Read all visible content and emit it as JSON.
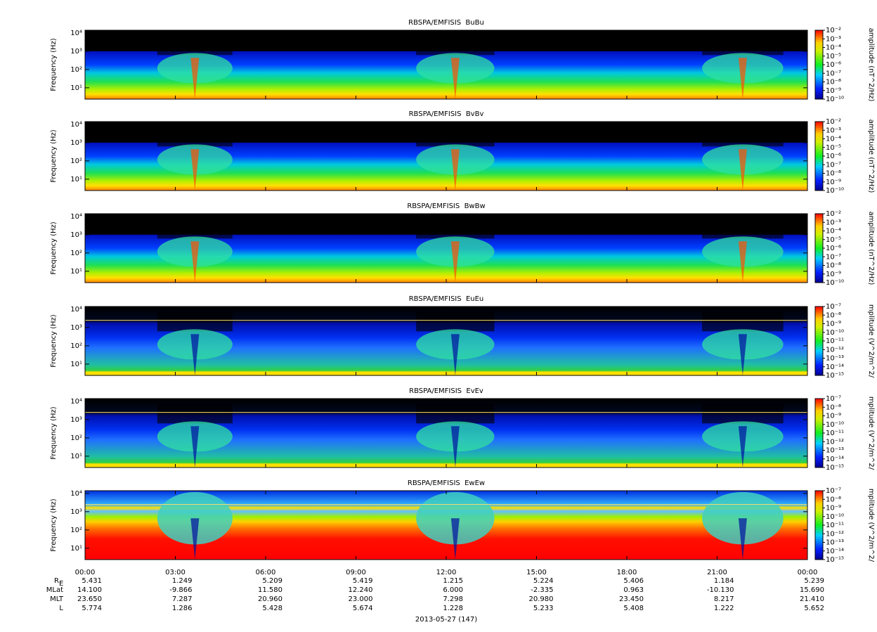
{
  "chart_data": [
    {
      "type": "spectrogram",
      "title": "RBSPA/EMFISIS  BuBu",
      "y_label": "Frequency (Hz)",
      "log_y": true,
      "ylim": [
        2.4,
        14000
      ],
      "yticks": [
        {
          "value": 10,
          "label": "10¹"
        },
        {
          "value": 100,
          "label": "10²"
        },
        {
          "value": 1000,
          "label": "10³"
        },
        {
          "value": 10000,
          "label": "10⁴"
        }
      ],
      "colorbar": {
        "label": "amplitude (nT^2/Hz)",
        "log": true,
        "zlim": [
          1e-10,
          0.01
        ],
        "zticks": [
          {
            "value": 0.01,
            "label": "10⁻²"
          },
          {
            "value": 0.001,
            "label": "10⁻³"
          },
          {
            "value": 0.0001,
            "label": "10⁻⁴"
          },
          {
            "value": 1e-05,
            "label": "10⁻⁵"
          },
          {
            "value": 1e-06,
            "label": "10⁻⁶"
          },
          {
            "value": 1e-07,
            "label": "10⁻⁷"
          },
          {
            "value": 1e-08,
            "label": "10⁻⁸"
          },
          {
            "value": 1e-09,
            "label": "10⁻⁹"
          },
          {
            "value": 1e-10,
            "label": "10⁻¹⁰"
          }
        ]
      }
    },
    {
      "type": "spectrogram",
      "title": "RBSPA/EMFISIS  BvBv",
      "y_label": "Frequency (Hz)",
      "log_y": true,
      "ylim": [
        2.4,
        14000
      ],
      "yticks": [
        {
          "value": 10,
          "label": "10¹"
        },
        {
          "value": 100,
          "label": "10²"
        },
        {
          "value": 1000,
          "label": "10³"
        },
        {
          "value": 10000,
          "label": "10⁴"
        }
      ],
      "colorbar": {
        "label": "amplitude (nT^2/Hz)",
        "log": true,
        "zlim": [
          1e-10,
          0.01
        ],
        "zticks": [
          {
            "value": 0.01,
            "label": "10⁻²"
          },
          {
            "value": 0.001,
            "label": "10⁻³"
          },
          {
            "value": 0.0001,
            "label": "10⁻⁴"
          },
          {
            "value": 1e-05,
            "label": "10⁻⁵"
          },
          {
            "value": 1e-06,
            "label": "10⁻⁶"
          },
          {
            "value": 1e-07,
            "label": "10⁻⁷"
          },
          {
            "value": 1e-08,
            "label": "10⁻⁸"
          },
          {
            "value": 1e-09,
            "label": "10⁻⁹"
          },
          {
            "value": 1e-10,
            "label": "10⁻¹⁰"
          }
        ]
      }
    },
    {
      "type": "spectrogram",
      "title": "RBSPA/EMFISIS  BwBw",
      "y_label": "Frequency (Hz)",
      "log_y": true,
      "ylim": [
        2.4,
        14000
      ],
      "yticks": [
        {
          "value": 10,
          "label": "10¹"
        },
        {
          "value": 100,
          "label": "10²"
        },
        {
          "value": 1000,
          "label": "10³"
        },
        {
          "value": 10000,
          "label": "10⁴"
        }
      ],
      "colorbar": {
        "label": "amplitude (nT^2/Hz)",
        "log": true,
        "zlim": [
          1e-10,
          0.01
        ],
        "zticks": [
          {
            "value": 0.01,
            "label": "10⁻²"
          },
          {
            "value": 0.001,
            "label": "10⁻³"
          },
          {
            "value": 0.0001,
            "label": "10⁻⁴"
          },
          {
            "value": 1e-05,
            "label": "10⁻⁵"
          },
          {
            "value": 1e-06,
            "label": "10⁻⁶"
          },
          {
            "value": 1e-07,
            "label": "10⁻⁷"
          },
          {
            "value": 1e-08,
            "label": "10⁻⁸"
          },
          {
            "value": 1e-09,
            "label": "10⁻⁹"
          },
          {
            "value": 1e-10,
            "label": "10⁻¹⁰"
          }
        ]
      }
    },
    {
      "type": "spectrogram",
      "title": "RBSPA/EMFISIS  EuEu",
      "y_label": "Frequency (Hz)",
      "log_y": true,
      "ylim": [
        2.4,
        14000
      ],
      "yticks": [
        {
          "value": 10,
          "label": "10¹"
        },
        {
          "value": 100,
          "label": "10²"
        },
        {
          "value": 1000,
          "label": "10³"
        },
        {
          "value": 10000,
          "label": "10⁴"
        }
      ],
      "colorbar": {
        "label": "mplitude (V^2/m^2/",
        "log": true,
        "zlim": [
          1e-15,
          1e-07
        ],
        "zticks": [
          {
            "value": 1e-07,
            "label": "10⁻⁷"
          },
          {
            "value": 1e-08,
            "label": "10⁻⁸"
          },
          {
            "value": 1e-09,
            "label": "10⁻⁹"
          },
          {
            "value": 1e-10,
            "label": "10⁻¹⁰"
          },
          {
            "value": 1e-11,
            "label": "10⁻¹¹"
          },
          {
            "value": 1e-12,
            "label": "10⁻¹²"
          },
          {
            "value": 1e-13,
            "label": "10⁻¹³"
          },
          {
            "value": 1e-14,
            "label": "10⁻¹⁴"
          },
          {
            "value": 1e-15,
            "label": "10⁻¹⁵"
          }
        ]
      }
    },
    {
      "type": "spectrogram",
      "title": "RBSPA/EMFISIS  EvEv",
      "y_label": "Frequency (Hz)",
      "log_y": true,
      "ylim": [
        2.4,
        14000
      ],
      "yticks": [
        {
          "value": 10,
          "label": "10¹"
        },
        {
          "value": 100,
          "label": "10²"
        },
        {
          "value": 1000,
          "label": "10³"
        },
        {
          "value": 10000,
          "label": "10⁴"
        }
      ],
      "colorbar": {
        "label": "mplitude (V^2/m^2/",
        "log": true,
        "zlim": [
          1e-15,
          1e-07
        ],
        "zticks": [
          {
            "value": 1e-07,
            "label": "10⁻⁷"
          },
          {
            "value": 1e-08,
            "label": "10⁻⁸"
          },
          {
            "value": 1e-09,
            "label": "10⁻⁹"
          },
          {
            "value": 1e-10,
            "label": "10⁻¹⁰"
          },
          {
            "value": 1e-11,
            "label": "10⁻¹¹"
          },
          {
            "value": 1e-12,
            "label": "10⁻¹²"
          },
          {
            "value": 1e-13,
            "label": "10⁻¹³"
          },
          {
            "value": 1e-14,
            "label": "10⁻¹⁴"
          },
          {
            "value": 1e-15,
            "label": "10⁻¹⁵"
          }
        ]
      }
    },
    {
      "type": "spectrogram",
      "title": "RBSPA/EMFISIS  EwEw",
      "y_label": "Frequency (Hz)",
      "log_y": true,
      "ylim": [
        2.4,
        14000
      ],
      "yticks": [
        {
          "value": 10,
          "label": "10¹"
        },
        {
          "value": 100,
          "label": "10²"
        },
        {
          "value": 1000,
          "label": "10³"
        },
        {
          "value": 10000,
          "label": "10⁴"
        }
      ],
      "colorbar": {
        "label": "mplitude (V^2/m^2/",
        "log": true,
        "zlim": [
          1e-15,
          1e-07
        ],
        "zticks": [
          {
            "value": 1e-07,
            "label": "10⁻⁷"
          },
          {
            "value": 1e-08,
            "label": "10⁻⁸"
          },
          {
            "value": 1e-09,
            "label": "10⁻⁹"
          },
          {
            "value": 1e-10,
            "label": "10⁻¹⁰"
          },
          {
            "value": 1e-11,
            "label": "10⁻¹¹"
          },
          {
            "value": 1e-12,
            "label": "10⁻¹²"
          },
          {
            "value": 1e-13,
            "label": "10⁻¹³"
          },
          {
            "value": 1e-14,
            "label": "10⁻¹⁴"
          },
          {
            "value": 1e-15,
            "label": "10⁻¹⁵"
          }
        ]
      }
    }
  ],
  "time_axis": {
    "xlim": [
      0,
      24
    ],
    "xticks": [
      {
        "value": 0,
        "label": "00:00"
      },
      {
        "value": 3,
        "label": "03:00"
      },
      {
        "value": 6,
        "label": "06:00"
      },
      {
        "value": 9,
        "label": "09:00"
      },
      {
        "value": 12,
        "label": "12:00"
      },
      {
        "value": 15,
        "label": "15:00"
      },
      {
        "value": 18,
        "label": "18:00"
      },
      {
        "value": 21,
        "label": "21:00"
      },
      {
        "value": 24,
        "label": "00:00"
      }
    ],
    "date": "2013-05-27 (147)"
  },
  "ephemeris": {
    "rows": [
      {
        "label": "R",
        "label_sub": "E",
        "values": [
          "5.431",
          "1.249",
          "5.209",
          "5.419",
          "1.215",
          "5.224",
          "5.406",
          "1.184",
          "5.239"
        ]
      },
      {
        "label": "MLat",
        "values": [
          "14.100",
          "-9.866",
          "11.580",
          "12.240",
          "6.000",
          "-2.335",
          "0.963",
          "-10.130",
          "15.690"
        ]
      },
      {
        "label": "MLT",
        "values": [
          "23.650",
          "7.287",
          "20.960",
          "23.000",
          "7.298",
          "20.980",
          "23.450",
          "8.217",
          "21.410"
        ]
      },
      {
        "label": "L",
        "values": [
          "5.774",
          "1.286",
          "5.428",
          "5.674",
          "1.228",
          "5.233",
          "5.408",
          "1.222",
          "5.652"
        ]
      }
    ]
  }
}
